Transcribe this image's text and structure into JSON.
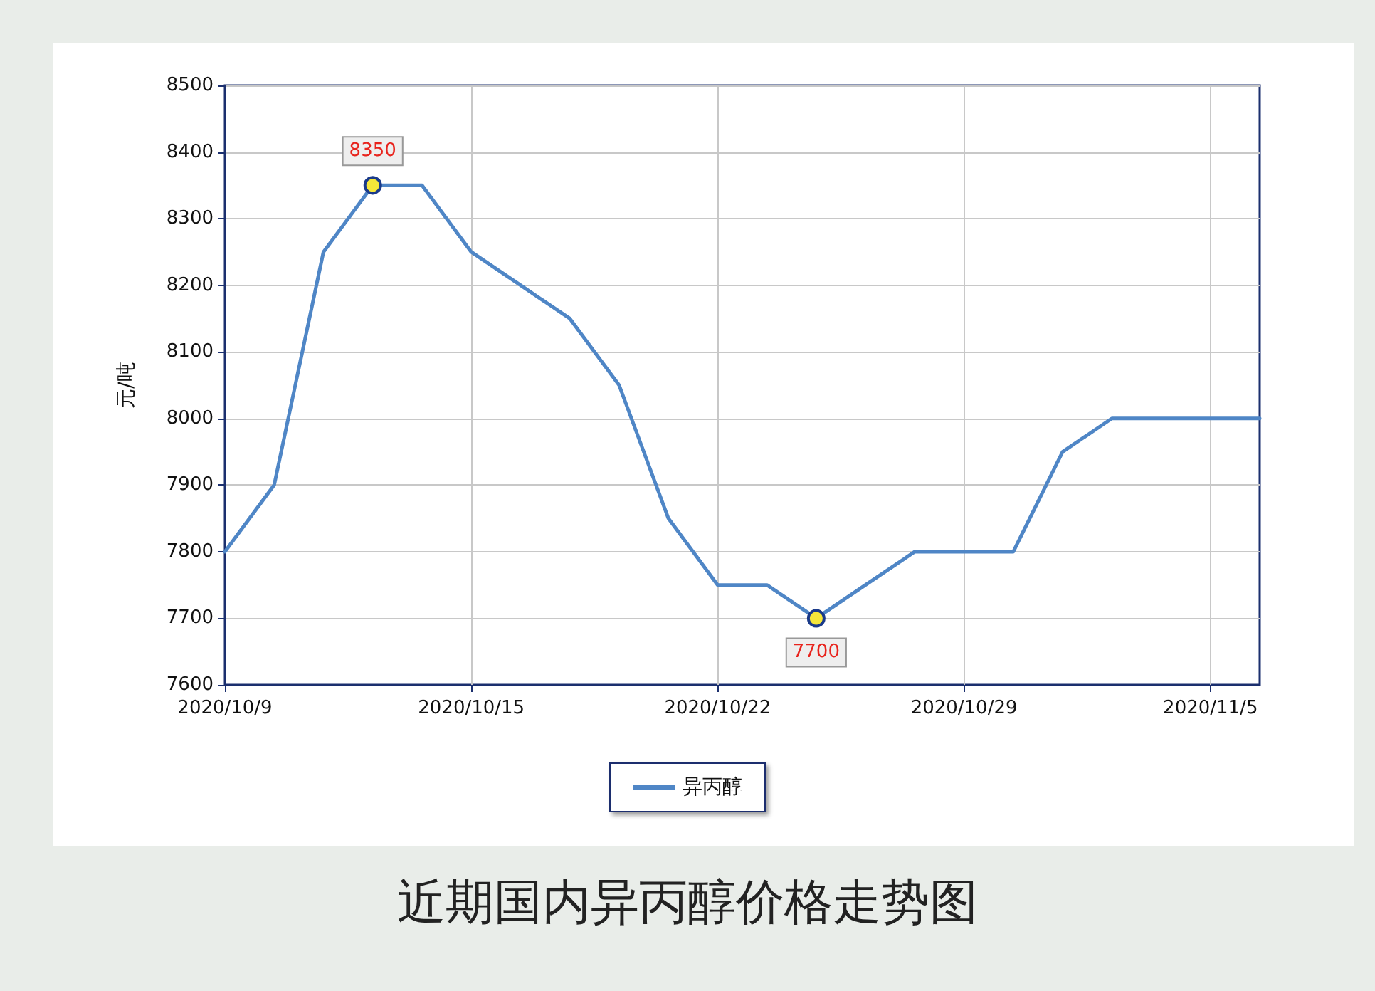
{
  "chart_data": {
    "type": "line",
    "title": "近期国内异丙醇价格走势图",
    "ylabel": "元/吨",
    "categories": [
      "2020/10/9",
      null,
      null,
      null,
      null,
      "2020/10/15",
      null,
      null,
      null,
      null,
      "2020/10/22",
      null,
      null,
      null,
      null,
      "2020/10/29",
      null,
      null,
      null,
      null,
      "2020/11/5",
      null
    ],
    "series": [
      {
        "name": "异丙醇",
        "color": "#4f86c6",
        "values": [
          7800,
          7900,
          8250,
          8350,
          8350,
          8250,
          8200,
          8150,
          8050,
          7850,
          7750,
          7750,
          7700,
          7750,
          7800,
          7800,
          7800,
          7950,
          8000,
          8000,
          8000,
          8000
        ],
        "value_labels": [
          null,
          null,
          null,
          "8350",
          null,
          null,
          null,
          null,
          null,
          null,
          null,
          null,
          "7700",
          null,
          null,
          null,
          null,
          null,
          null,
          null,
          null,
          null
        ]
      }
    ],
    "ylim": [
      7600,
      8500
    ],
    "yticks": [
      7600,
      7700,
      7800,
      7900,
      8000,
      8100,
      8200,
      8300,
      8400,
      8500
    ],
    "grid": true,
    "legend": "bottom",
    "marker": "none",
    "line_style": "solid"
  }
}
